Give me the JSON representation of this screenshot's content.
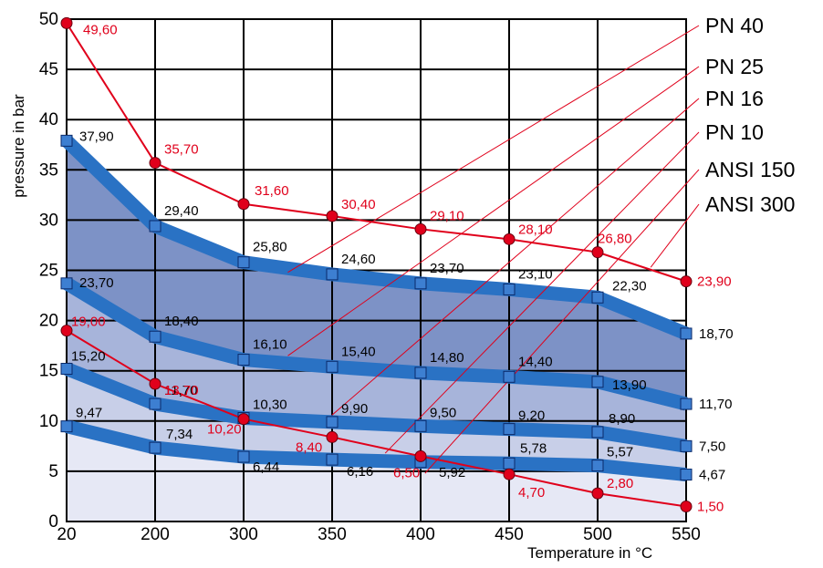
{
  "chart_data": {
    "type": "line",
    "title": "",
    "xlabel": "Temperature in °C",
    "ylabel": "pressure in bar",
    "x_tick_labels": [
      "20",
      "200",
      "300",
      "350",
      "400",
      "450",
      "500",
      "550"
    ],
    "y_ticks": [
      0,
      5,
      10,
      15,
      20,
      25,
      30,
      35,
      40,
      45,
      50
    ],
    "ylim": [
      0,
      50
    ],
    "grid": true,
    "legend_position": "right",
    "legend": [
      "PN 40",
      "PN 25",
      "PN 16",
      "PN 10",
      "ANSI 150",
      "ANSI 300"
    ],
    "colors": {
      "blue_band": "#2a72c4",
      "marker_blue": "#3d7fd1",
      "red": "#e0001b",
      "fill_1": "#7d92c6",
      "fill_2": "#a7b4da",
      "fill_3": "#c8cfe8",
      "fill_4": "#e6e8f5"
    },
    "series": [
      {
        "name": "ANSI 300",
        "color": "#e0001b",
        "marker": "circle",
        "values": [
          49.6,
          35.7,
          31.6,
          30.4,
          29.1,
          28.1,
          26.8,
          23.9
        ],
        "labels": [
          "49,60",
          "35,70",
          "31,60",
          "30,40",
          "29,10",
          "28,10",
          "26,80",
          "23,90"
        ]
      },
      {
        "name": "PN 40",
        "color": "#2a72c4",
        "marker": "square",
        "values": [
          37.9,
          29.4,
          25.8,
          24.6,
          23.7,
          23.1,
          22.3,
          18.7
        ],
        "labels": [
          "37,90",
          "29,40",
          "25,80",
          "24,60",
          "23,70",
          "23,10",
          "22,30",
          "18,70"
        ]
      },
      {
        "name": "PN 25",
        "color": "#2a72c4",
        "marker": "square",
        "values": [
          23.7,
          18.4,
          16.1,
          15.4,
          14.8,
          14.4,
          13.9,
          11.7
        ],
        "labels": [
          "23,70",
          "18,40",
          "16,10",
          "15,40",
          "14,80",
          "14,40",
          "13,90",
          "11,70"
        ]
      },
      {
        "name": "PN 16",
        "color": "#2a72c4",
        "marker": "square",
        "values": [
          15.2,
          11.7,
          10.3,
          9.9,
          9.5,
          9.2,
          8.9,
          7.5
        ],
        "labels": [
          "15,20",
          "11,70",
          "10,30",
          "9,90",
          "9,50",
          "9,20",
          "8,90",
          "7,50"
        ]
      },
      {
        "name": "PN 10",
        "color": "#2a72c4",
        "marker": "square",
        "values": [
          9.47,
          7.34,
          6.44,
          6.16,
          5.92,
          5.78,
          5.57,
          4.67
        ],
        "labels": [
          "9,47",
          "7,34",
          "6,44",
          "6,16",
          "5,92",
          "5,78",
          "5,57",
          "4,67"
        ]
      },
      {
        "name": "ANSI 150",
        "color": "#e0001b",
        "marker": "circle",
        "values": [
          19.0,
          13.7,
          10.2,
          8.4,
          6.5,
          4.7,
          2.8,
          1.5
        ],
        "labels": [
          "19,00",
          "13,70",
          "10,20",
          "8,40",
          "6,50",
          "4,70",
          "2,80",
          "1,50"
        ]
      }
    ]
  }
}
